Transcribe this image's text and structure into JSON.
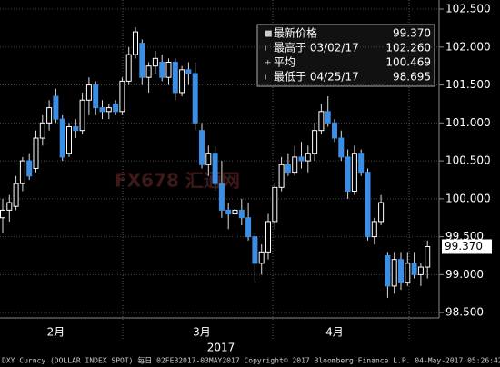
{
  "chart_data": {
    "type": "candlestick",
    "x_label": "2017",
    "categories": [
      null,
      null,
      null,
      null,
      null,
      null,
      null,
      null,
      "2月",
      null,
      null,
      null,
      null,
      null,
      null,
      null,
      null,
      null,
      null,
      null,
      null,
      null,
      null,
      null,
      null,
      null,
      null,
      null,
      null,
      null,
      "3月",
      null,
      null,
      null,
      null,
      null,
      null,
      null,
      null,
      null,
      null,
      null,
      null,
      null,
      null,
      null,
      null,
      null,
      null,
      null,
      "4月",
      null,
      null,
      null,
      null,
      null,
      null,
      null,
      null,
      null,
      null,
      null,
      null,
      null,
      null
    ],
    "open": [
      99.75,
      99.85,
      99.9,
      100.2,
      100.5,
      100.4,
      100.8,
      101.0,
      101.35,
      101.05,
      100.6,
      100.95,
      100.9,
      101.3,
      101.5,
      101.2,
      101.15,
      101.25,
      101.15,
      101.55,
      101.9,
      102.05,
      101.6,
      101.75,
      101.8,
      101.6,
      101.8,
      101.4,
      101.7,
      101.65,
      100.9,
      100.45,
      100.6,
      100.2,
      99.85,
      99.8,
      99.85,
      99.75,
      99.5,
      99.15,
      99.3,
      99.7,
      100.15,
      100.45,
      100.35,
      100.55,
      100.5,
      100.6,
      100.9,
      101.15,
      101.0,
      100.8,
      100.55,
      100.1,
      100.6,
      100.35,
      99.5,
      99.7,
      99.25,
      98.85,
      99.2,
      98.9,
      99.15,
      99.0,
      99.1
    ],
    "high": [
      100.0,
      100.05,
      100.3,
      100.55,
      100.6,
      100.9,
      101.1,
      101.3,
      101.45,
      101.1,
      101.0,
      101.05,
      101.4,
      101.6,
      101.55,
      101.3,
      101.25,
      101.3,
      101.6,
      102.0,
      102.26,
      102.1,
      101.8,
      101.95,
      101.9,
      101.85,
      101.85,
      101.75,
      101.8,
      101.8,
      101.0,
      100.7,
      100.7,
      100.5,
      99.95,
      99.9,
      100.0,
      99.95,
      99.55,
      99.4,
      99.8,
      100.2,
      100.55,
      100.6,
      100.7,
      100.75,
      100.7,
      101.0,
      101.25,
      101.35,
      101.05,
      100.9,
      100.65,
      100.7,
      100.65,
      100.4,
      99.75,
      100.05,
      99.3,
      99.3,
      99.3,
      99.3,
      99.3,
      99.15,
      99.45
    ],
    "low": [
      99.55,
      99.7,
      99.85,
      100.1,
      100.25,
      100.35,
      100.7,
      100.9,
      101.0,
      100.5,
      100.55,
      100.8,
      100.85,
      101.1,
      101.1,
      101.05,
      101.05,
      101.1,
      101.1,
      101.5,
      101.85,
      101.5,
      101.4,
      101.65,
      101.55,
      101.5,
      101.3,
      101.35,
      101.5,
      100.9,
      100.4,
      100.3,
      100.1,
      99.75,
      99.6,
      99.65,
      99.65,
      99.45,
      98.9,
      99.0,
      99.2,
      99.6,
      100.1,
      100.3,
      100.3,
      100.4,
      100.35,
      100.5,
      100.85,
      100.95,
      100.75,
      100.5,
      100.0,
      100.05,
      100.3,
      99.45,
      99.4,
      99.65,
      98.695,
      98.75,
      98.8,
      98.85,
      98.95,
      98.85,
      98.95
    ],
    "close": [
      99.85,
      99.95,
      100.2,
      100.5,
      100.3,
      100.8,
      101.0,
      101.2,
      101.05,
      100.55,
      100.95,
      100.9,
      101.3,
      101.5,
      101.2,
      101.15,
      101.2,
      101.15,
      101.55,
      101.9,
      102.2,
      101.6,
      101.75,
      101.85,
      101.6,
      101.8,
      101.4,
      101.7,
      101.65,
      101.0,
      100.45,
      100.6,
      100.2,
      99.85,
      99.8,
      99.85,
      99.75,
      99.5,
      99.15,
      99.3,
      99.7,
      100.15,
      100.45,
      100.35,
      100.55,
      100.5,
      100.6,
      100.9,
      101.15,
      101.0,
      100.8,
      100.55,
      100.1,
      100.6,
      100.35,
      99.5,
      99.7,
      99.95,
      98.85,
      99.2,
      98.9,
      99.15,
      99.0,
      99.1,
      99.37
    ],
    "up_color": "#ffffff",
    "down_color": "#3a8ee6",
    "ylim": [
      98.43,
      102.62
    ],
    "yticks": [
      {
        "value": 98.5,
        "label": "98.500"
      },
      {
        "value": 99,
        "label": "99.000"
      },
      {
        "value": 99.5,
        "label": "99.500"
      },
      {
        "value": 100,
        "label": "100.000"
      },
      {
        "value": 100.5,
        "label": "100.500"
      },
      {
        "value": 101,
        "label": "101.000"
      },
      {
        "value": 101.5,
        "label": "101.500"
      },
      {
        "value": 102,
        "label": "102.000"
      },
      {
        "value": 102.5,
        "label": "102.500"
      }
    ],
    "grid": true,
    "legend": [
      {
        "label": "最新价格",
        "value": "99.370"
      },
      {
        "label": "最高于 03/02/17",
        "value": "102.260"
      },
      {
        "label": "平均",
        "value": "100.469"
      },
      {
        "label": "最低于 04/25/17",
        "value": "98.695"
      }
    ],
    "watermark": "FX678 汇通网",
    "footer": "DXY Curncy (DOLLAR INDEX SPOT)  每日 02FEB2017-03MAY2017 Copyright© 2017 Bloomberg Finance L.P. 04-May-2017 05:26:42"
  }
}
